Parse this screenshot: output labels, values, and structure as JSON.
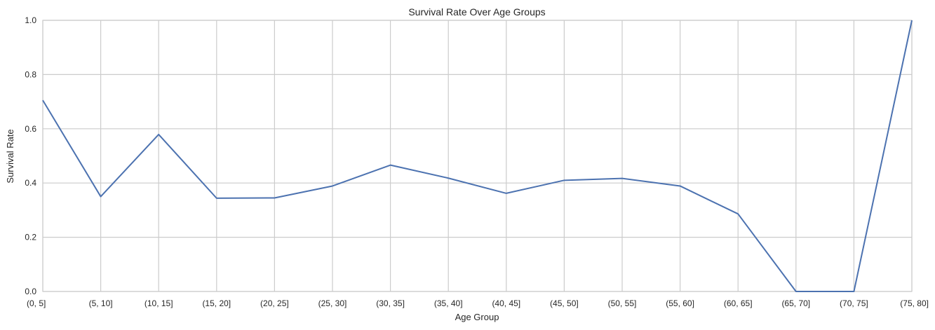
{
  "chart_data": {
    "type": "line",
    "title": "Survival Rate Over Age Groups",
    "xlabel": "Age Group",
    "ylabel": "Survival Rate",
    "categories": [
      "(0, 5]",
      "(5, 10]",
      "(10, 15]",
      "(15, 20]",
      "(20, 25]",
      "(25, 30]",
      "(30, 35]",
      "(35, 40]",
      "(40, 45]",
      "(45, 50]",
      "(50, 55]",
      "(55, 60]",
      "(60, 65]",
      "(65, 70]",
      "(70, 75]",
      "(75, 80]"
    ],
    "series": [
      {
        "values": [
          0.705,
          0.35,
          0.579,
          0.344,
          0.345,
          0.389,
          0.466,
          0.418,
          0.362,
          0.41,
          0.417,
          0.389,
          0.286,
          0.0,
          0.0,
          1.0
        ]
      }
    ],
    "ylim": [
      0,
      1
    ],
    "yticks": [
      "0.0",
      "0.2",
      "0.4",
      "0.6",
      "0.8",
      "1.0"
    ],
    "grid": true,
    "colors": {
      "line": "#4c72b0",
      "grid": "#cccccc",
      "axis": "#cccccc",
      "text": "#262626"
    }
  }
}
